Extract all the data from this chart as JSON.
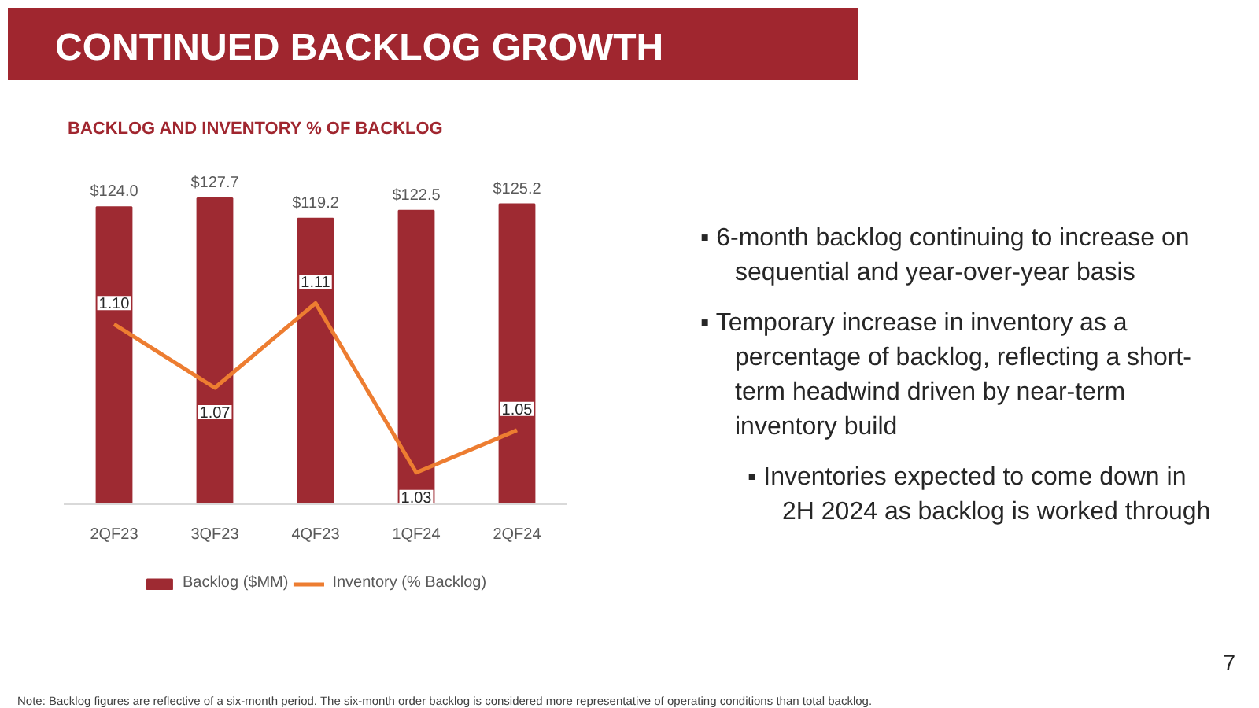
{
  "chart_data": {
    "type": "bar",
    "title": "CONTINUED BACKLOG GROWTH",
    "subtitle": "BACKLOG AND INVENTORY % OF BACKLOG",
    "categories": [
      "2QF23",
      "3QF23",
      "4QF23",
      "1QF24",
      "2QF24"
    ],
    "series": [
      {
        "name": "Backlog ($MM)",
        "color": "#9e2a32",
        "values": [
          124.0,
          127.7,
          119.2,
          122.5,
          125.2
        ],
        "value_labels": [
          "$124.0",
          "$127.7",
          "$119.2",
          "$122.5",
          "$125.2"
        ]
      },
      {
        "name": "Inventory (% Backlog)",
        "type": "line",
        "axis": "y2",
        "color": "#ed7d31",
        "values": [
          1.1,
          1.07,
          1.11,
          1.03,
          1.05
        ],
        "value_labels": [
          "1.10",
          "1.07",
          "1.11",
          "1.03",
          "1.05"
        ]
      }
    ],
    "legend": "bottom",
    "annotations": [
      "▪ 6-month backlog continuing to increase on sequential and year-over-year basis",
      "▪ Temporary increase in inventory as a percentage of backlog, reflecting a short-term headwind driven by near-term inventory build",
      "▪ Inventories expected to come down in 2H 2024 as backlog is worked through",
      "Note: Backlog figures are reflective of a six-month period. The six-month order backlog is considered more representative of operating conditions than total backlog.",
      "7"
    ]
  }
}
